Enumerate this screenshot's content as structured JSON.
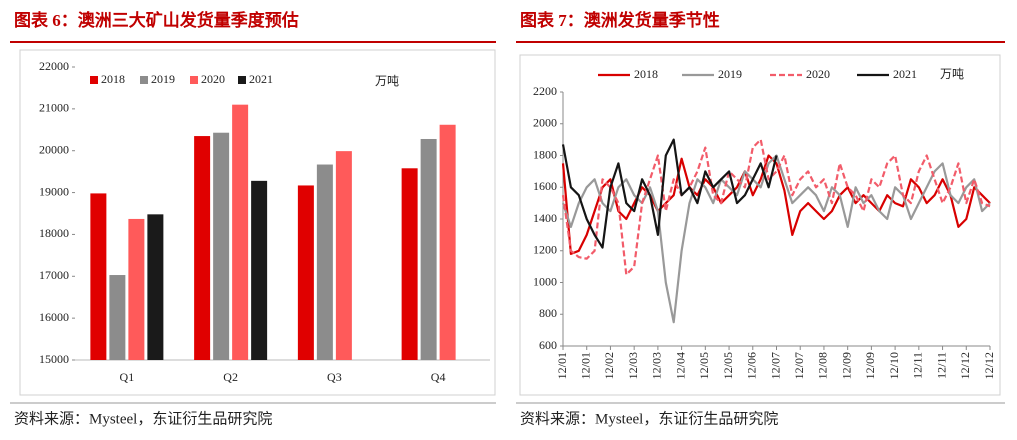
{
  "chart_data": [
    {
      "type": "bar",
      "title": "图表 6：澳洲三大矿山发货量季度预估",
      "unit": "万吨",
      "source": "资料来源：Mysteel，东证衍生品研究院",
      "categories": [
        "Q1",
        "Q2",
        "Q3",
        "Q4"
      ],
      "series": [
        {
          "name": "2018",
          "color": "#e00000",
          "values": [
            18980,
            20350,
            19170,
            19580
          ]
        },
        {
          "name": "2019",
          "color": "#8c8c8c",
          "values": [
            17030,
            20430,
            19670,
            20280
          ]
        },
        {
          "name": "2020",
          "color": "#ff5a5a",
          "values": [
            18370,
            21100,
            19990,
            20620
          ]
        },
        {
          "name": "2021",
          "color": "#1a1a1a",
          "values": [
            18480,
            19280,
            null,
            null
          ]
        }
      ],
      "ylim": [
        15000,
        22000
      ],
      "yticks": [
        15000,
        16000,
        17000,
        18000,
        19000,
        20000,
        21000,
        22000
      ]
    },
    {
      "type": "line",
      "title": "图表 7：澳洲发货量季节性",
      "unit": "万吨",
      "source": "资料来源：Mysteel，东证衍生品研究院",
      "categories": [
        "12/01",
        null,
        null,
        "12/01",
        null,
        null,
        "12/02",
        null,
        null,
        "12/03",
        null,
        null,
        "12/03",
        null,
        null,
        "12/04",
        null,
        null,
        "12/05",
        null,
        null,
        "12/05",
        null,
        null,
        "12/06",
        null,
        null,
        "12/07",
        null,
        null,
        "12/07",
        null,
        null,
        "12/08",
        null,
        null,
        "12/09",
        null,
        null,
        "12/09",
        null,
        null,
        "12/10",
        null,
        null,
        "12/11",
        null,
        null,
        "12/11",
        null,
        null,
        "12/12",
        null,
        null,
        "12/12"
      ],
      "series": [
        {
          "name": "2018",
          "color": "#d80000",
          "dashed": false,
          "values": [
            1750,
            1180,
            1200,
            1300,
            1450,
            1600,
            1650,
            1450,
            1400,
            1500,
            1600,
            1550,
            1450,
            1500,
            1550,
            1780,
            1600,
            1550,
            1650,
            1600,
            1500,
            1550,
            1600,
            1700,
            1550,
            1650,
            1800,
            1750,
            1580,
            1300,
            1450,
            1500,
            1450,
            1400,
            1450,
            1550,
            1600,
            1500,
            1550,
            1500,
            1450,
            1550,
            1500,
            1480,
            1650,
            1600,
            1500,
            1550,
            1650,
            1550,
            1350,
            1400,
            1600,
            1550,
            1500
          ]
        },
        {
          "name": "2019",
          "color": "#999999",
          "dashed": false,
          "values": [
            1500,
            1350,
            1500,
            1600,
            1650,
            1500,
            1450,
            1600,
            1650,
            1550,
            1500,
            1600,
            1450,
            1000,
            750,
            1200,
            1500,
            1650,
            1600,
            1500,
            1650,
            1600,
            1550,
            1700,
            1650,
            1600,
            1750,
            1800,
            1650,
            1500,
            1550,
            1600,
            1550,
            1450,
            1600,
            1550,
            1350,
            1600,
            1500,
            1550,
            1450,
            1400,
            1600,
            1550,
            1400,
            1500,
            1600,
            1700,
            1750,
            1550,
            1500,
            1600,
            1650,
            1450,
            1500
          ]
        },
        {
          "name": "2020",
          "color": "#f25c6a",
          "dashed": true,
          "values": [
            1550,
            1200,
            1160,
            1150,
            1200,
            1650,
            1600,
            1500,
            1050,
            1100,
            1500,
            1650,
            1800,
            1450,
            1650,
            1550,
            1600,
            1700,
            1850,
            1550,
            1500,
            1700,
            1650,
            1600,
            1850,
            1900,
            1650,
            1700,
            1800,
            1550,
            1650,
            1700,
            1600,
            1650,
            1500,
            1750,
            1600,
            1550,
            1450,
            1650,
            1600,
            1750,
            1800,
            1550,
            1500,
            1700,
            1800,
            1650,
            1500,
            1600,
            1750,
            1500,
            1650,
            1500,
            1480
          ]
        },
        {
          "name": "2021",
          "color": "#151515",
          "dashed": false,
          "values": [
            1870,
            1600,
            1550,
            1400,
            1300,
            1220,
            1600,
            1750,
            1500,
            1450,
            1650,
            1550,
            1300,
            1800,
            1900,
            1550,
            1600,
            1500,
            1700,
            1600,
            1650,
            1700,
            1500,
            1550,
            1650,
            1750,
            1600,
            1800,
            null,
            null,
            null,
            null,
            null,
            null,
            null,
            null,
            null,
            null,
            null,
            null,
            null,
            null,
            null,
            null,
            null,
            null,
            null,
            null,
            null,
            null,
            null,
            null,
            null,
            null,
            null
          ]
        }
      ],
      "ylim": [
        600,
        2200
      ],
      "yticks": [
        600,
        800,
        1000,
        1200,
        1400,
        1600,
        1800,
        2000,
        2200
      ]
    }
  ]
}
